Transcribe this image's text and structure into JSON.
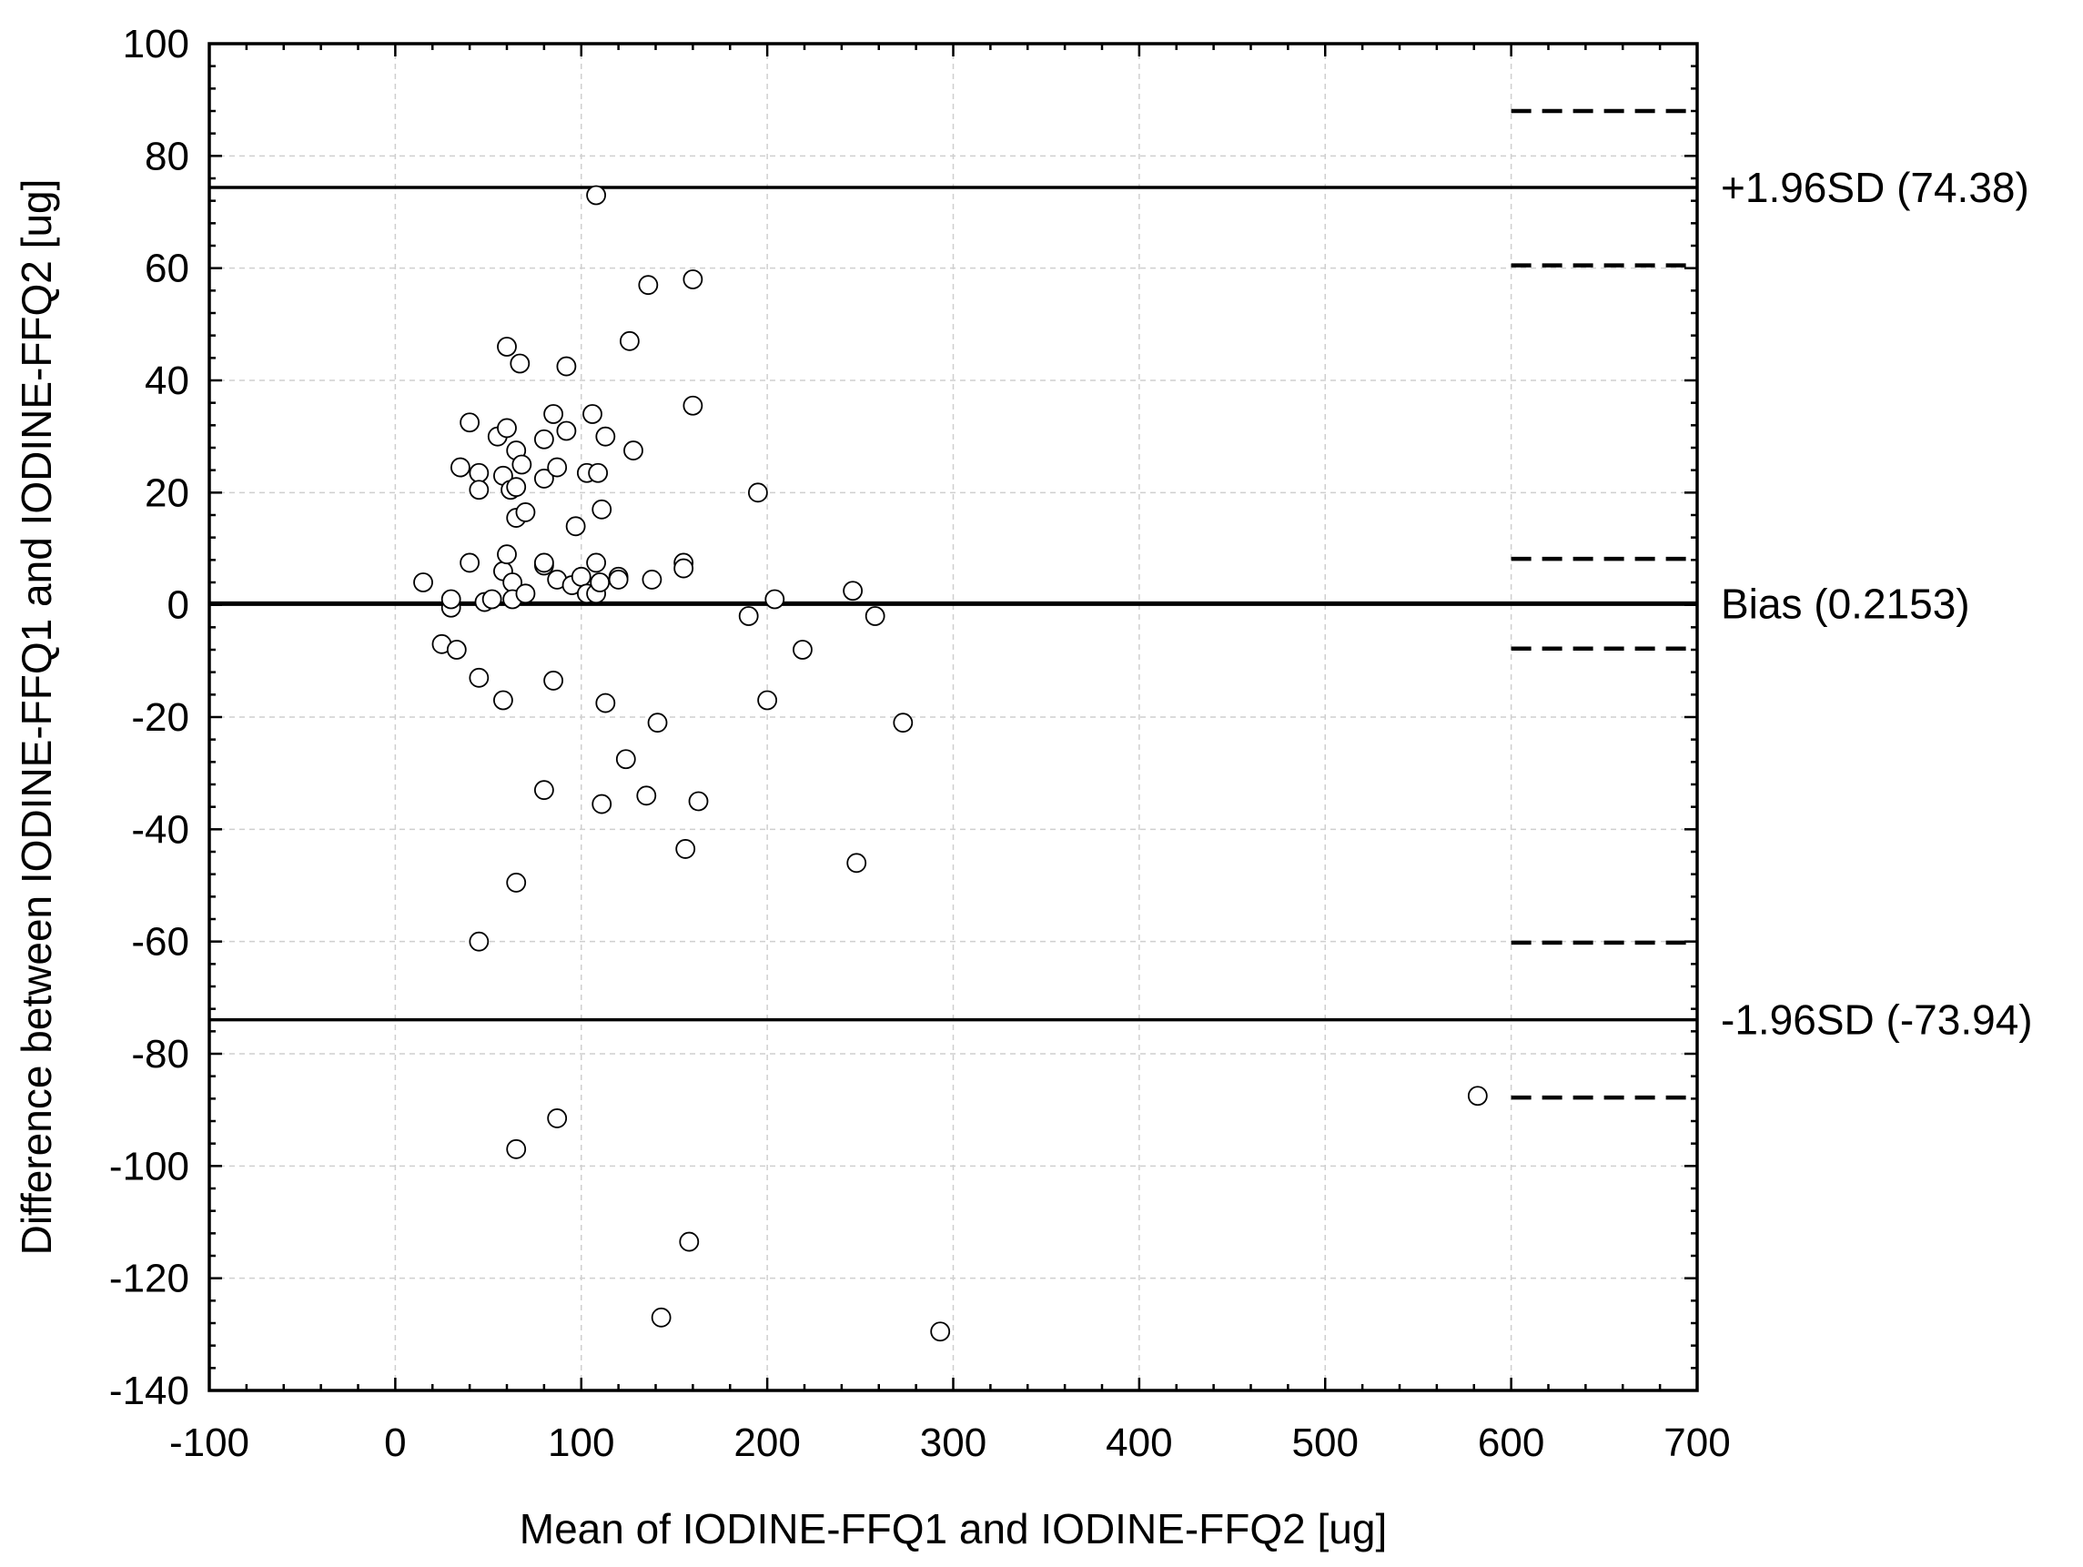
{
  "chart_data": {
    "type": "scatter",
    "title": "",
    "xlabel": "Mean of IODINE-FFQ1 and IODINE-FFQ2 [ug]",
    "ylabel": "Difference between IODINE-FFQ1 and IODINE-FFQ2 [ug]",
    "xlim": [
      -100,
      700
    ],
    "ylim": [
      -140,
      100
    ],
    "x_ticks": [
      -100,
      0,
      100,
      200,
      300,
      400,
      500,
      600,
      700
    ],
    "y_ticks": [
      -140,
      -120,
      -100,
      -80,
      -60,
      -40,
      -20,
      0,
      20,
      40,
      60,
      80,
      100
    ],
    "grid": true,
    "reference_lines": [
      {
        "label": "+1.96SD (74.38)",
        "y": 74.38
      },
      {
        "label": "Bias (0.2153)",
        "y": 0.2153
      },
      {
        "label": "-1.96SD (-73.94)",
        "y": -73.94
      }
    ],
    "ci_lines": {
      "x_range": [
        600,
        700
      ],
      "y": [
        88,
        60.5,
        8.2,
        -7.8,
        -60.2,
        -87.8
      ]
    },
    "points": [
      [
        15,
        4
      ],
      [
        25,
        -7
      ],
      [
        30,
        -0.5
      ],
      [
        30,
        1
      ],
      [
        33,
        -8
      ],
      [
        35,
        24.5
      ],
      [
        40,
        32.5
      ],
      [
        40,
        7.5
      ],
      [
        45,
        23.5
      ],
      [
        45,
        20.5
      ],
      [
        45,
        -13
      ],
      [
        45,
        -60
      ],
      [
        48,
        0.5
      ],
      [
        52,
        1
      ],
      [
        55,
        30
      ],
      [
        58,
        23
      ],
      [
        58,
        6
      ],
      [
        58,
        -17
      ],
      [
        60,
        46
      ],
      [
        60,
        31.5
      ],
      [
        60,
        9
      ],
      [
        62,
        20.5
      ],
      [
        63,
        4
      ],
      [
        63,
        1
      ],
      [
        65,
        27.5
      ],
      [
        65,
        21
      ],
      [
        65,
        15.5
      ],
      [
        65,
        -49.5
      ],
      [
        65,
        -97
      ],
      [
        67,
        43
      ],
      [
        68,
        25
      ],
      [
        70,
        16.5
      ],
      [
        70,
        2
      ],
      [
        80,
        29.5
      ],
      [
        80,
        22.5
      ],
      [
        80,
        7
      ],
      [
        80,
        7.5
      ],
      [
        80,
        -33
      ],
      [
        85,
        34
      ],
      [
        85,
        -13.5
      ],
      [
        87,
        24.5
      ],
      [
        87,
        4.5
      ],
      [
        87,
        -91.5
      ],
      [
        92,
        31
      ],
      [
        92,
        42.5
      ],
      [
        95,
        3.5
      ],
      [
        97,
        14
      ],
      [
        100,
        5
      ],
      [
        103,
        23.5
      ],
      [
        103,
        2
      ],
      [
        106,
        34
      ],
      [
        108,
        73
      ],
      [
        108,
        7.5
      ],
      [
        108,
        2
      ],
      [
        109,
        23.5
      ],
      [
        110,
        4
      ],
      [
        111,
        17
      ],
      [
        111,
        -35.5
      ],
      [
        113,
        30
      ],
      [
        113,
        -17.5
      ],
      [
        120,
        5
      ],
      [
        120,
        4.5
      ],
      [
        124,
        -27.5
      ],
      [
        126,
        47
      ],
      [
        128,
        27.5
      ],
      [
        135,
        -34
      ],
      [
        136,
        57
      ],
      [
        138,
        4.5
      ],
      [
        141,
        -21
      ],
      [
        143,
        -127
      ],
      [
        155,
        7.5
      ],
      [
        155,
        6.5
      ],
      [
        156,
        -43.5
      ],
      [
        158,
        -113.5
      ],
      [
        160,
        58
      ],
      [
        160,
        35.5
      ],
      [
        163,
        -35
      ],
      [
        190,
        -2
      ],
      [
        195,
        20
      ],
      [
        200,
        -17
      ],
      [
        204,
        1
      ],
      [
        219,
        -8
      ],
      [
        246,
        2.5
      ],
      [
        248,
        -46
      ],
      [
        258,
        -2
      ],
      [
        273,
        -21
      ],
      [
        293,
        -129.5
      ],
      [
        582,
        -87.5
      ]
    ]
  }
}
